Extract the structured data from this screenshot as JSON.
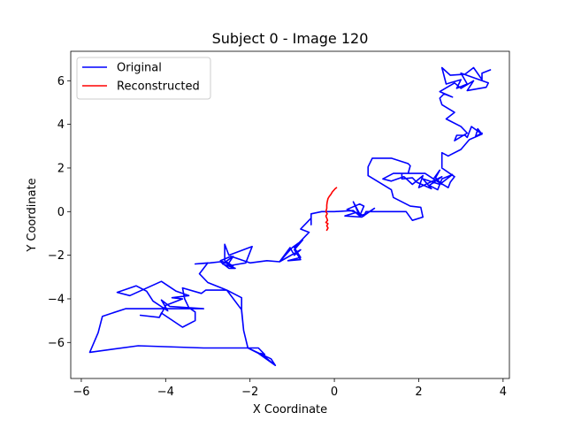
{
  "chart_data": {
    "type": "line",
    "title": "Subject 0 - Image 120",
    "xlabel": "X Coordinate",
    "ylabel": "Y Coordinate",
    "xlim": [
      -6.25,
      4.15
    ],
    "ylim": [
      -7.65,
      7.35
    ],
    "xticks": [
      -6,
      -4,
      -2,
      0,
      2,
      4
    ],
    "yticks": [
      -6,
      -4,
      -2,
      0,
      2,
      4,
      6
    ],
    "grid": false,
    "legend_position": "top-left",
    "series": [
      {
        "name": "Original",
        "color": "#0000ff",
        "points": [
          [
            -1.4,
            -7.05
          ],
          [
            -1.75,
            -6.5
          ],
          [
            -1.65,
            -6.55
          ],
          [
            -1.8,
            -6.25
          ],
          [
            -3.1,
            -6.25
          ],
          [
            -4.65,
            -6.15
          ],
          [
            -5.8,
            -6.45
          ],
          [
            -5.6,
            -5.55
          ],
          [
            -5.5,
            -4.8
          ],
          [
            -4.95,
            -4.45
          ],
          [
            -3.9,
            -4.45
          ],
          [
            -3.1,
            -4.45
          ],
          [
            -3.9,
            -4.35
          ],
          [
            -4.1,
            -4.05
          ],
          [
            -3.95,
            -4.55
          ],
          [
            -4.3,
            -4.1
          ],
          [
            -4.45,
            -3.65
          ],
          [
            -4.7,
            -3.4
          ],
          [
            -5.15,
            -3.7
          ],
          [
            -4.85,
            -3.85
          ],
          [
            -4.1,
            -3.2
          ],
          [
            -3.75,
            -3.65
          ],
          [
            -3.45,
            -3.85
          ],
          [
            -3.85,
            -3.95
          ],
          [
            -3.6,
            -4.0
          ],
          [
            -4.0,
            -4.3
          ],
          [
            -4.05,
            -4.5
          ],
          [
            -4.15,
            -4.85
          ],
          [
            -4.6,
            -4.75
          ],
          [
            -4.15,
            -4.85
          ],
          [
            -4.1,
            -4.65
          ],
          [
            -3.6,
            -5.3
          ],
          [
            -3.3,
            -5.0
          ],
          [
            -3.3,
            -4.6
          ],
          [
            -3.45,
            -4.4
          ],
          [
            -3.55,
            -4.0
          ],
          [
            -3.6,
            -3.5
          ],
          [
            -3.15,
            -3.75
          ],
          [
            -3.05,
            -3.6
          ],
          [
            -2.55,
            -3.6
          ],
          [
            -2.2,
            -4.5
          ],
          [
            -2.15,
            -5.45
          ],
          [
            -2.05,
            -6.25
          ],
          [
            -1.5,
            -6.75
          ],
          [
            -1.4,
            -7.05
          ],
          [
            -1.8,
            -6.5
          ],
          [
            -2.05,
            -6.25
          ],
          [
            -2.15,
            -5.45
          ],
          [
            -2.2,
            -4.55
          ],
          [
            -2.2,
            -3.95
          ],
          [
            -2.55,
            -3.6
          ],
          [
            -3.0,
            -3.25
          ],
          [
            -3.2,
            -2.85
          ],
          [
            -3.0,
            -2.35
          ],
          [
            -3.3,
            -2.4
          ],
          [
            -2.95,
            -2.35
          ],
          [
            -2.7,
            -2.3
          ],
          [
            -2.5,
            -2.6
          ],
          [
            -2.35,
            -2.6
          ],
          [
            -2.65,
            -2.4
          ],
          [
            -2.4,
            -2.05
          ],
          [
            -2.55,
            -2.5
          ],
          [
            -2.25,
            -2.4
          ],
          [
            -2.1,
            -2.35
          ],
          [
            -1.95,
            -1.6
          ],
          [
            -2.5,
            -2.0
          ],
          [
            -2.6,
            -1.5
          ],
          [
            -2.6,
            -2.25
          ],
          [
            -2.4,
            -2.5
          ],
          [
            -2.7,
            -2.25
          ],
          [
            -2.45,
            -2.05
          ],
          [
            -2.0,
            -2.35
          ],
          [
            -1.6,
            -2.25
          ],
          [
            -1.3,
            -2.3
          ],
          [
            -1.05,
            -1.65
          ],
          [
            -0.95,
            -2.0
          ],
          [
            -0.8,
            -1.75
          ],
          [
            -1.3,
            -2.3
          ],
          [
            -1.0,
            -1.65
          ],
          [
            -0.75,
            -1.3
          ],
          [
            -0.95,
            -1.75
          ],
          [
            -0.8,
            -2.2
          ],
          [
            -1.1,
            -2.25
          ],
          [
            -0.8,
            -2.1
          ],
          [
            -0.95,
            -1.65
          ],
          [
            -0.6,
            -0.95
          ],
          [
            -0.8,
            -0.8
          ],
          [
            -0.55,
            -0.3
          ],
          [
            -0.55,
            -0.6
          ],
          [
            -0.55,
            -0.1
          ],
          [
            -0.3,
            0.0
          ],
          [
            0.0,
            0.0
          ],
          [
            0.45,
            0.05
          ],
          [
            0.6,
            -0.2
          ],
          [
            0.45,
            0.45
          ],
          [
            0.6,
            -0.1
          ],
          [
            0.3,
            0.1
          ],
          [
            0.6,
            0.35
          ],
          [
            0.7,
            0.25
          ],
          [
            0.6,
            -0.2
          ],
          [
            0.75,
            -0.1
          ],
          [
            0.95,
            0.15
          ],
          [
            0.65,
            -0.25
          ],
          [
            0.25,
            -0.2
          ],
          [
            0.5,
            -0.05
          ],
          [
            0.6,
            -0.1
          ],
          [
            0.7,
            -0.2
          ],
          [
            0.75,
            0.0
          ],
          [
            1.05,
            0.0
          ],
          [
            1.7,
            0.0
          ],
          [
            1.85,
            -0.4
          ],
          [
            2.1,
            -0.25
          ],
          [
            2.05,
            0.2
          ],
          [
            1.8,
            0.25
          ],
          [
            1.4,
            0.65
          ],
          [
            1.35,
            1.0
          ],
          [
            0.8,
            1.65
          ],
          [
            0.8,
            2.05
          ],
          [
            0.9,
            2.45
          ],
          [
            1.35,
            2.45
          ],
          [
            1.75,
            2.2
          ],
          [
            1.8,
            2.1
          ],
          [
            1.75,
            1.75
          ],
          [
            1.4,
            1.75
          ],
          [
            1.15,
            1.5
          ],
          [
            1.35,
            1.4
          ],
          [
            1.65,
            1.6
          ],
          [
            1.85,
            1.25
          ],
          [
            2.1,
            1.65
          ],
          [
            2.0,
            1.1
          ],
          [
            2.55,
            1.6
          ],
          [
            2.25,
            1.2
          ],
          [
            2.45,
            1.0
          ],
          [
            2.55,
            1.5
          ],
          [
            2.8,
            1.7
          ],
          [
            2.5,
            1.25
          ],
          [
            2.1,
            1.5
          ],
          [
            2.3,
            1.05
          ],
          [
            1.95,
            1.35
          ],
          [
            1.85,
            1.55
          ],
          [
            1.6,
            1.5
          ],
          [
            1.6,
            1.75
          ],
          [
            2.15,
            1.75
          ],
          [
            2.55,
            1.25
          ],
          [
            2.4,
            1.55
          ],
          [
            2.5,
            1.9
          ],
          [
            2.35,
            1.5
          ],
          [
            2.7,
            1.1
          ],
          [
            2.75,
            1.35
          ],
          [
            2.85,
            1.6
          ],
          [
            2.55,
            2.0
          ],
          [
            2.55,
            2.7
          ],
          [
            2.7,
            2.55
          ],
          [
            3.0,
            2.85
          ],
          [
            3.2,
            3.3
          ],
          [
            3.5,
            3.55
          ],
          [
            3.4,
            3.8
          ],
          [
            3.35,
            3.45
          ],
          [
            3.5,
            3.6
          ],
          [
            3.5,
            3.55
          ],
          [
            3.25,
            3.9
          ],
          [
            3.15,
            3.4
          ],
          [
            3.1,
            3.5
          ],
          [
            2.9,
            3.5
          ],
          [
            2.85,
            3.25
          ],
          [
            3.15,
            3.6
          ],
          [
            3.0,
            3.9
          ],
          [
            2.65,
            4.25
          ],
          [
            2.85,
            4.55
          ],
          [
            2.55,
            4.9
          ],
          [
            2.5,
            5.2
          ],
          [
            2.6,
            5.4
          ],
          [
            2.8,
            5.25
          ],
          [
            2.5,
            5.5
          ],
          [
            2.85,
            5.9
          ],
          [
            3.0,
            5.65
          ],
          [
            3.3,
            6.0
          ],
          [
            3.15,
            5.55
          ],
          [
            3.6,
            5.7
          ],
          [
            3.65,
            5.9
          ],
          [
            3.0,
            6.35
          ],
          [
            3.15,
            5.85
          ],
          [
            2.9,
            5.65
          ],
          [
            3.0,
            6.05
          ],
          [
            2.65,
            5.85
          ],
          [
            2.55,
            6.6
          ],
          [
            2.75,
            6.25
          ],
          [
            3.1,
            6.3
          ],
          [
            3.3,
            6.6
          ],
          [
            3.5,
            6.05
          ],
          [
            3.5,
            6.35
          ],
          [
            3.7,
            6.5
          ]
        ]
      },
      {
        "name": "Reconstructed",
        "color": "#ff0000",
        "points": [
          [
            0.05,
            1.1
          ],
          [
            0.02,
            1.05
          ],
          [
            -0.05,
            0.9
          ],
          [
            -0.08,
            0.8
          ],
          [
            -0.12,
            0.7
          ],
          [
            -0.15,
            0.6
          ],
          [
            -0.17,
            0.45
          ],
          [
            -0.18,
            0.3
          ],
          [
            -0.18,
            0.15
          ],
          [
            -0.2,
            0.0
          ],
          [
            -0.17,
            -0.1
          ],
          [
            -0.2,
            -0.2
          ],
          [
            -0.18,
            -0.3
          ],
          [
            -0.16,
            -0.4
          ],
          [
            -0.2,
            -0.5
          ],
          [
            -0.15,
            -0.55
          ],
          [
            -0.18,
            -0.65
          ],
          [
            -0.15,
            -0.75
          ],
          [
            -0.18,
            -0.85
          ]
        ]
      }
    ]
  }
}
